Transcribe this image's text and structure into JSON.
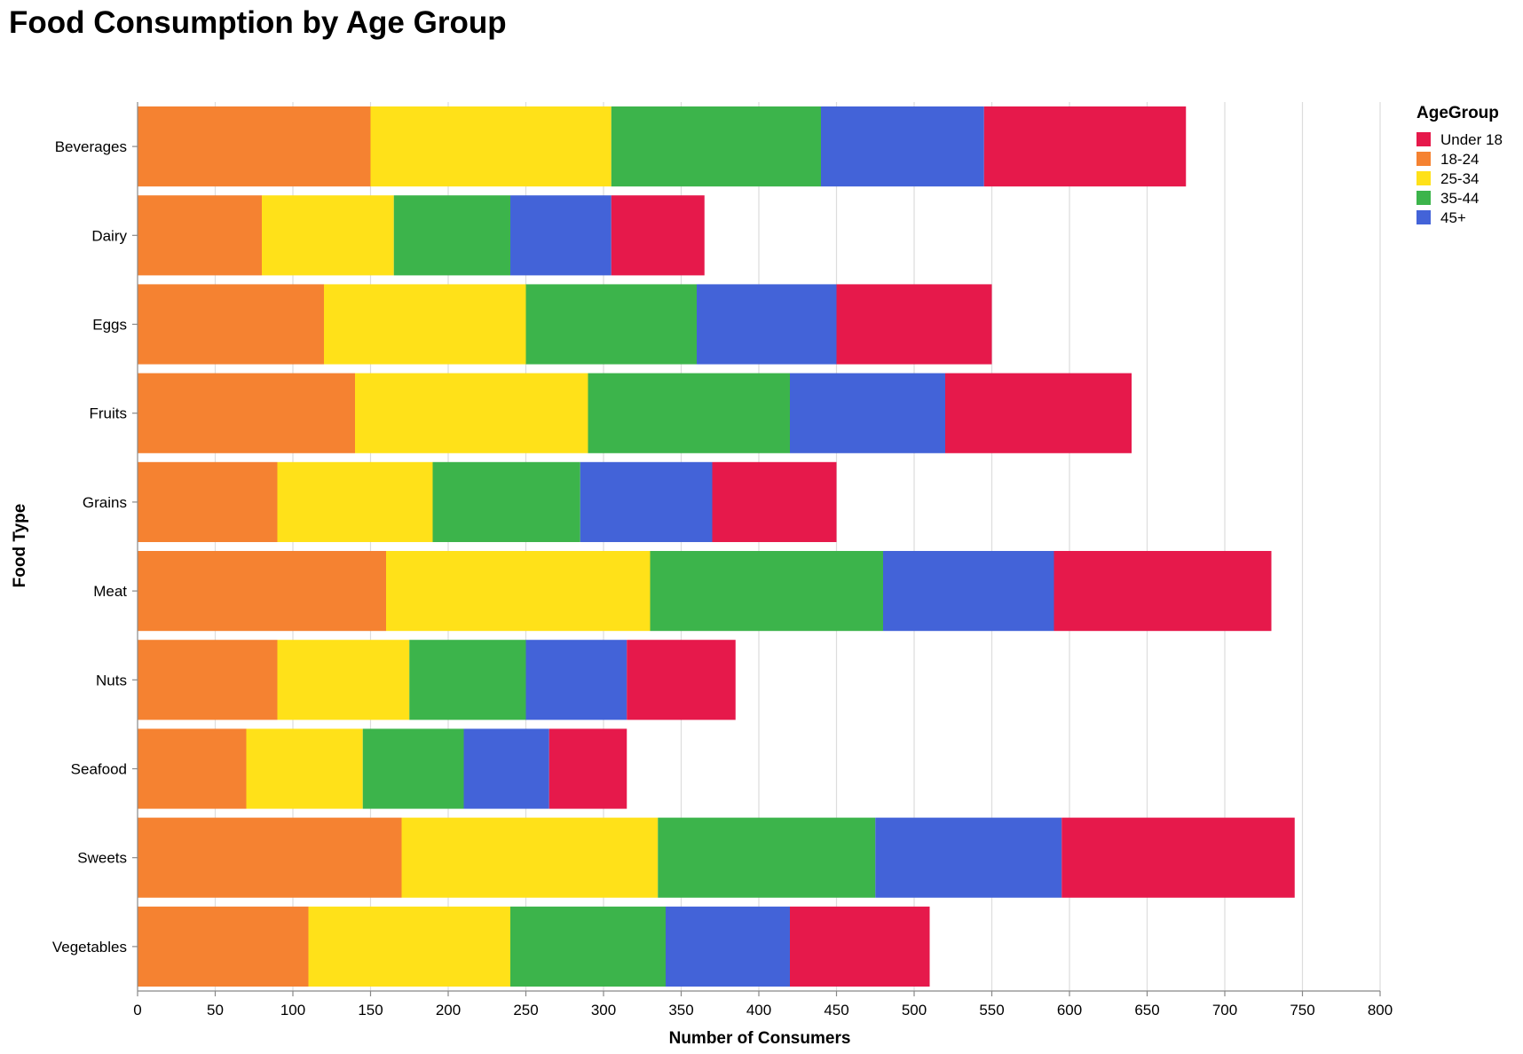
{
  "chart_data": {
    "type": "bar",
    "orientation": "horizontal",
    "stacked": true,
    "title": "Food Consumption by Age Group",
    "xlabel": "Number of Consumers",
    "ylabel": "Food Type",
    "xlim": [
      0,
      800
    ],
    "x_ticks": [
      0,
      50,
      100,
      150,
      200,
      250,
      300,
      350,
      400,
      450,
      500,
      550,
      600,
      650,
      700,
      750,
      800
    ],
    "grid": "vertical",
    "legend": {
      "title": "AgeGroup",
      "position": "top-right"
    },
    "categories": [
      "Beverages",
      "Dairy",
      "Eggs",
      "Fruits",
      "Grains",
      "Meat",
      "Nuts",
      "Seafood",
      "Sweets",
      "Vegetables"
    ],
    "series": [
      {
        "name": "Under 18",
        "color": "#e6194b",
        "values": [
          130,
          60,
          100,
          120,
          80,
          140,
          70,
          50,
          150,
          90
        ]
      },
      {
        "name": "18-24",
        "color": "#f58231",
        "values": [
          150,
          80,
          120,
          140,
          90,
          160,
          90,
          70,
          170,
          110
        ]
      },
      {
        "name": "25-34",
        "color": "#ffe119",
        "values": [
          155,
          85,
          130,
          150,
          100,
          170,
          85,
          75,
          165,
          130
        ]
      },
      {
        "name": "35-44",
        "color": "#3cb44b",
        "values": [
          135,
          75,
          110,
          130,
          95,
          150,
          75,
          65,
          140,
          100
        ]
      },
      {
        "name": "45+",
        "color": "#4363d8",
        "values": [
          105,
          65,
          90,
          100,
          85,
          110,
          65,
          55,
          120,
          80
        ]
      }
    ],
    "stack_order": [
      "18-24",
      "25-34",
      "35-44",
      "45+",
      "Under 18"
    ]
  }
}
